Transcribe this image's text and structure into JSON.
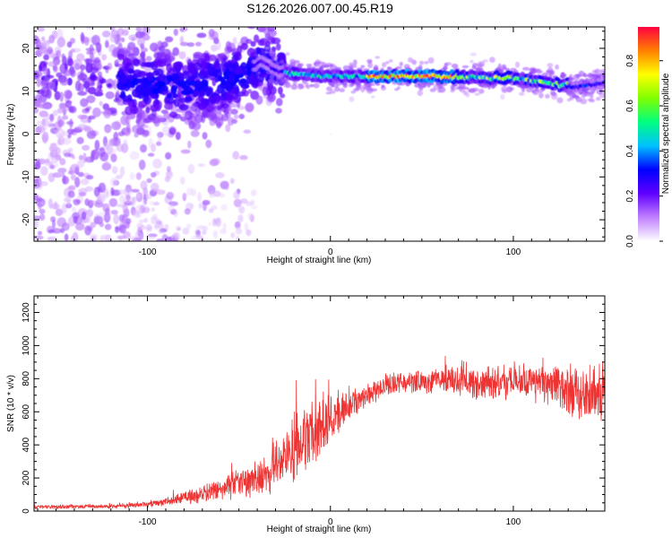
{
  "title": "S126.2026.007.00.45.R19",
  "chart_data": [
    {
      "type": "heatmap",
      "name": "spectrogram",
      "xlabel": "Height of straight line (km)",
      "ylabel": "Frequency (Hz)",
      "xlim": [
        -162,
        150
      ],
      "ylim": [
        -25,
        25
      ],
      "xticks": [
        -100,
        0,
        100
      ],
      "yticks": [
        -20,
        -10,
        0,
        10,
        20
      ],
      "colorbar": {
        "label": "Normalized spectral amplitude",
        "range": [
          0,
          0.95
        ],
        "ticks": [
          0,
          0.2,
          0.4,
          0.6,
          0.8
        ],
        "colors": [
          "#ffffff",
          "#c080ff",
          "#6000ff",
          "#0000ff",
          "#00c0ff",
          "#00ff80",
          "#80ff00",
          "#ffff00",
          "#ff8000",
          "#ff0040"
        ]
      },
      "ridge": {
        "description_points_x": [
          -162,
          -120,
          -80,
          -50,
          -38,
          -30,
          -20,
          0,
          50,
          100,
          120,
          135,
          150
        ],
        "frequency": [
          12,
          12,
          11,
          13,
          17,
          15,
          14,
          13.5,
          13.5,
          13,
          12,
          11,
          12
        ]
      }
    },
    {
      "type": "line",
      "name": "snr",
      "xlabel": "Height of straight line (km)",
      "ylabel": "SNR (10 * v/v)",
      "xlim": [
        -162,
        150
      ],
      "ylim": [
        0,
        1300
      ],
      "xticks": [
        -100,
        0,
        100
      ],
      "yticks": [
        0,
        200,
        400,
        600,
        800,
        1000,
        1200
      ],
      "color": "#ee3333",
      "envelope": {
        "x": [
          -162,
          -120,
          -100,
          -80,
          -60,
          -40,
          -25,
          -20,
          -15,
          -10,
          0,
          10,
          20,
          30,
          40,
          60,
          80,
          100,
          120,
          140,
          150
        ],
        "mean": [
          25,
          30,
          40,
          80,
          130,
          200,
          320,
          380,
          420,
          450,
          560,
          650,
          710,
          760,
          780,
          790,
          770,
          780,
          760,
          700,
          720
        ],
        "spread": [
          12,
          15,
          20,
          40,
          70,
          120,
          200,
          230,
          220,
          200,
          150,
          110,
          80,
          70,
          70,
          80,
          100,
          110,
          130,
          180,
          200
        ]
      }
    }
  ]
}
